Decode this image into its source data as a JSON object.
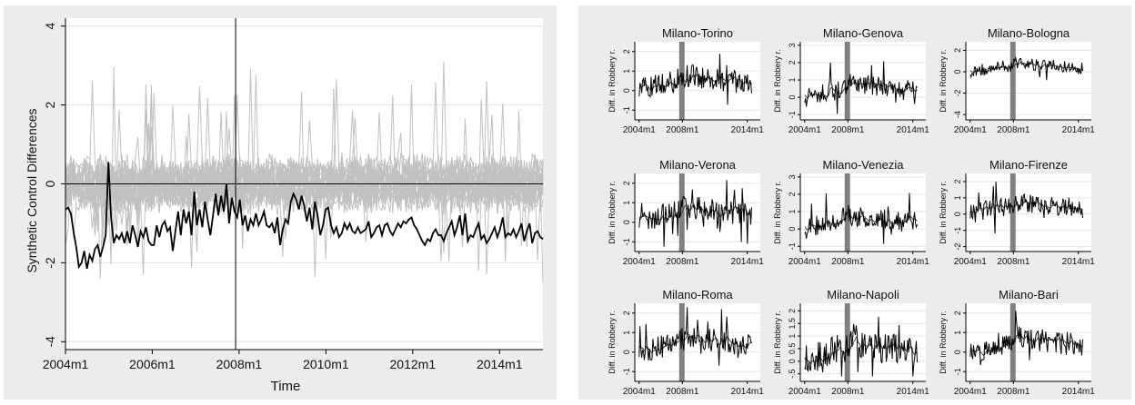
{
  "chart_data": [
    {
      "type": "line",
      "title": "",
      "xlabel": "Time",
      "ylabel": "Synthetic Control Differences",
      "x_range": [
        "2004m1",
        "2014m12"
      ],
      "xlim": [
        2004.0,
        2015.0
      ],
      "ylim": [
        -4.2,
        4.2
      ],
      "yticks": [
        4,
        2,
        0,
        -2,
        -4
      ],
      "y_tick_labels": [
        "4",
        "2",
        "0",
        "-2",
        "-4"
      ],
      "x_ticks": [
        2004,
        2006,
        2008,
        2010,
        2012,
        2014
      ],
      "x_tick_labels": [
        "2004m1",
        "2006m1",
        "2008m1",
        "2010m1",
        "2012m1",
        "2014m1"
      ],
      "vline_x": 2007.92,
      "hline_y": 0,
      "grid": true,
      "series": [
        {
          "role": "treated",
          "color": "#000000",
          "values": [
            -0.65,
            -0.6,
            -0.75,
            -1.2,
            -1.6,
            -2.1,
            -2.0,
            -1.7,
            -2.15,
            -1.8,
            -1.95,
            -1.65,
            -1.55,
            -1.85,
            -1.6,
            -1.3,
            0.55,
            -0.85,
            -1.5,
            -1.3,
            -1.4,
            -1.25,
            -1.5,
            -1.2,
            -1.5,
            -1.05,
            -1.3,
            -1.6,
            -1.2,
            -1.35,
            -1.1,
            -1.45,
            -1.55,
            -1.55,
            -1.05,
            -1.35,
            -1.05,
            -0.95,
            -1.2,
            -1.1,
            -1.7,
            -1.2,
            -0.7,
            -1.3,
            -0.65,
            -1.0,
            -0.7,
            -1.3,
            -0.2,
            -1.05,
            -0.65,
            -1.1,
            -0.45,
            -0.9,
            -1.3,
            -0.8,
            -0.25,
            -0.8,
            -0.3,
            -0.7,
            0.0,
            -1.0,
            -0.35,
            -0.7,
            -0.85,
            -0.4,
            -1.05,
            -0.8,
            -1.2,
            -0.9,
            -1.05,
            -0.75,
            -1.05,
            -0.9,
            -0.7,
            -1.05,
            -1.1,
            -1.0,
            -1.25,
            -0.85,
            -1.55,
            -1.15,
            -0.9,
            -1.0,
            -0.45,
            -0.25,
            -0.4,
            -0.65,
            -0.3,
            -0.55,
            -0.95,
            -0.6,
            -1.15,
            -0.45,
            -0.8,
            -1.3,
            -1.05,
            -0.65,
            -0.6,
            -1.05,
            -1.25,
            -1.1,
            -1.35,
            -1.25,
            -1.0,
            -1.15,
            -1.0,
            -1.2,
            -1.25,
            -1.1,
            -1.25,
            -1.2,
            -1.15,
            -0.95,
            -1.35,
            -1.25,
            -1.1,
            -1.05,
            -1.3,
            -1.05,
            -1.0,
            -1.2,
            -1.3,
            -1.15,
            -1.0,
            -1.1,
            -0.95,
            -1.0,
            -0.9,
            -0.85,
            -1.05,
            -1.15,
            -1.3,
            -1.45,
            -1.55,
            -1.4,
            -1.45,
            -1.25,
            -1.15,
            -1.3,
            -1.3,
            -1.45,
            -1.25,
            -1.1,
            -0.95,
            -1.3,
            -1.1,
            -0.8,
            -1.3,
            -0.75,
            -1.45,
            -1.3,
            -1.35,
            -1.15,
            -1.0,
            -1.4,
            -1.3,
            -1.5,
            -1.4,
            -1.25,
            -1.1,
            -1.35,
            -1.15,
            -0.85,
            -1.35,
            -1.25,
            -1.3,
            -1.15,
            -1.35,
            -1.2,
            -1.0,
            -1.45,
            -1.2,
            -1.0,
            -1.5,
            -1.25,
            -1.2,
            -1.35,
            -1.4
          ]
        }
      ],
      "placebo": {
        "count": 24,
        "color": "#c0c0c0",
        "spread": 0.55
      }
    },
    {
      "type": "line",
      "panels": [
        {
          "title": "Milano-Torino",
          "ylabel": "Diff. in Robbery r.",
          "yticks": [
            2,
            1,
            0,
            -1
          ],
          "ylim": [
            -1.5,
            2.5
          ]
        },
        {
          "title": "Milano-Genova",
          "ylabel": "Diff. in Robbery r.",
          "yticks": [
            3,
            2,
            1,
            0,
            -1
          ],
          "ylim": [
            -1.3,
            3.2
          ]
        },
        {
          "title": "Milano-Bologna",
          "ylabel": "Diff. in Robbery r.",
          "yticks": [
            2,
            0,
            -2,
            -4
          ],
          "ylim": [
            -4.5,
            2.8
          ]
        },
        {
          "title": "Milano-Verona",
          "ylabel": "Diff. in Robbery r.",
          "yticks": [
            2,
            1,
            0,
            -1
          ],
          "ylim": [
            -1.5,
            2.5
          ]
        },
        {
          "title": "Milano-Venezia",
          "ylabel": "Diff. in Robbery r.",
          "yticks": [
            3,
            2,
            1,
            0,
            -1
          ],
          "ylim": [
            -1.3,
            3.2
          ]
        },
        {
          "title": "Milano-Firenze",
          "ylabel": "Diff. in Robbery r.",
          "yticks": [
            2,
            1,
            0,
            -1,
            -2
          ],
          "ylim": [
            -2.3,
            2.5
          ]
        },
        {
          "title": "Milano-Roma",
          "ylabel": "Diff. in Robbery r.",
          "yticks": [
            2,
            1,
            0,
            -1
          ],
          "ylim": [
            -1.5,
            2.5
          ]
        },
        {
          "title": "Milano-Napoli",
          "ylabel": "Diff. in Robbery r.",
          "yticks": [
            2,
            1.5,
            1,
            0.5,
            0,
            -0.5
          ],
          "y_tick_labels": [
            "2",
            "1.5",
            "1",
            "0.5",
            "0",
            "-.5"
          ],
          "ylim": [
            -0.8,
            2.3
          ]
        },
        {
          "title": "Milano-Bari",
          "ylabel": "Diff. in Robbery r.",
          "yticks": [
            2,
            1,
            0,
            -1
          ],
          "ylim": [
            -1.5,
            2.5
          ]
        }
      ],
      "x_tick_labels": [
        "2004m1",
        "2008m1",
        "2014m1"
      ],
      "x_ticks": [
        2004,
        2008,
        2014
      ],
      "xlim": [
        2003.6,
        2015.2
      ],
      "band": [
        2007.7,
        2008.2
      ],
      "band_color": "#808080"
    }
  ]
}
